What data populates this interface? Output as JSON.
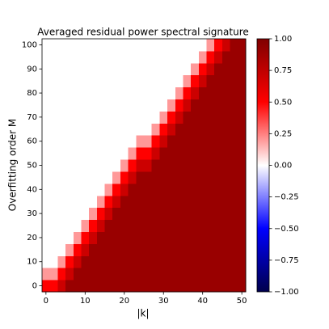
{
  "chart_data": {
    "type": "heatmap",
    "title": "Averaged residual power spectral signature",
    "xlabel": "|k|",
    "ylabel": "Overfitting order M",
    "x": [
      0,
      2,
      4,
      6,
      8,
      10,
      12,
      14,
      16,
      18,
      20,
      22,
      24,
      26,
      28,
      30,
      32,
      34,
      36,
      38,
      40,
      42,
      44,
      46,
      48,
      50
    ],
    "y": [
      0,
      5,
      10,
      15,
      20,
      25,
      30,
      35,
      40,
      45,
      50,
      55,
      60,
      65,
      70,
      75,
      80,
      85,
      90,
      95,
      100
    ],
    "z": [
      [
        0.5,
        0.5,
        0.7,
        0.9,
        0.9,
        0.9,
        0.9,
        0.9,
        0.9,
        0.9,
        0.9,
        0.9,
        0.9,
        0.9,
        0.9,
        0.9,
        0.9,
        0.9,
        0.9,
        0.9,
        0.9,
        0.9,
        0.9,
        0.9,
        0.9,
        0.9
      ],
      [
        0.2,
        0.2,
        0.5,
        0.7,
        0.9,
        0.9,
        0.9,
        0.9,
        0.9,
        0.9,
        0.9,
        0.9,
        0.9,
        0.9,
        0.9,
        0.9,
        0.9,
        0.9,
        0.9,
        0.9,
        0.9,
        0.9,
        0.9,
        0.9,
        0.9,
        0.9
      ],
      [
        0,
        0,
        0.2,
        0.5,
        0.7,
        0.9,
        0.9,
        0.9,
        0.9,
        0.9,
        0.9,
        0.9,
        0.9,
        0.9,
        0.9,
        0.9,
        0.9,
        0.9,
        0.9,
        0.9,
        0.9,
        0.9,
        0.9,
        0.9,
        0.9,
        0.9
      ],
      [
        0,
        0,
        0,
        0.2,
        0.5,
        0.7,
        0.9,
        0.9,
        0.9,
        0.9,
        0.9,
        0.9,
        0.9,
        0.9,
        0.9,
        0.9,
        0.9,
        0.9,
        0.9,
        0.9,
        0.9,
        0.9,
        0.9,
        0.9,
        0.9,
        0.9
      ],
      [
        0,
        0,
        0,
        0,
        0.2,
        0.5,
        0.7,
        0.9,
        0.9,
        0.9,
        0.9,
        0.9,
        0.9,
        0.9,
        0.9,
        0.9,
        0.9,
        0.9,
        0.9,
        0.9,
        0.9,
        0.9,
        0.9,
        0.9,
        0.9,
        0.9
      ],
      [
        0,
        0,
        0,
        0,
        0,
        0.2,
        0.5,
        0.7,
        0.9,
        0.9,
        0.9,
        0.9,
        0.9,
        0.9,
        0.9,
        0.9,
        0.9,
        0.9,
        0.9,
        0.9,
        0.9,
        0.9,
        0.9,
        0.9,
        0.9,
        0.9
      ],
      [
        0,
        0,
        0,
        0,
        0,
        0,
        0.2,
        0.5,
        0.7,
        0.9,
        0.9,
        0.9,
        0.9,
        0.9,
        0.9,
        0.9,
        0.9,
        0.9,
        0.9,
        0.9,
        0.9,
        0.9,
        0.9,
        0.9,
        0.9,
        0.9
      ],
      [
        0,
        0,
        0,
        0,
        0,
        0,
        0,
        0.2,
        0.5,
        0.7,
        0.9,
        0.9,
        0.9,
        0.9,
        0.9,
        0.9,
        0.9,
        0.9,
        0.9,
        0.9,
        0.9,
        0.9,
        0.9,
        0.9,
        0.9,
        0.9
      ],
      [
        0,
        0,
        0,
        0,
        0,
        0,
        0,
        0,
        0.2,
        0.5,
        0.7,
        0.9,
        0.9,
        0.9,
        0.9,
        0.9,
        0.9,
        0.9,
        0.9,
        0.9,
        0.9,
        0.9,
        0.9,
        0.9,
        0.9,
        0.9
      ],
      [
        0,
        0,
        0,
        0,
        0,
        0,
        0,
        0,
        0,
        0.2,
        0.5,
        0.7,
        0.9,
        0.9,
        0.9,
        0.9,
        0.9,
        0.9,
        0.9,
        0.9,
        0.9,
        0.9,
        0.9,
        0.9,
        0.9,
        0.9
      ],
      [
        0,
        0,
        0,
        0,
        0,
        0,
        0,
        0,
        0,
        0,
        0.2,
        0.5,
        0.7,
        0.7,
        0.9,
        0.9,
        0.9,
        0.9,
        0.9,
        0.9,
        0.9,
        0.9,
        0.9,
        0.9,
        0.9,
        0.9
      ],
      [
        0,
        0,
        0,
        0,
        0,
        0,
        0,
        0,
        0,
        0,
        0,
        0.2,
        0.5,
        0.5,
        0.7,
        0.9,
        0.9,
        0.9,
        0.9,
        0.9,
        0.9,
        0.9,
        0.9,
        0.9,
        0.9,
        0.9
      ],
      [
        0,
        0,
        0,
        0,
        0,
        0,
        0,
        0,
        0,
        0,
        0,
        0,
        0.2,
        0.2,
        0.5,
        0.7,
        0.9,
        0.9,
        0.9,
        0.9,
        0.9,
        0.9,
        0.9,
        0.9,
        0.9,
        0.9
      ],
      [
        0,
        0,
        0,
        0,
        0,
        0,
        0,
        0,
        0,
        0,
        0,
        0,
        0,
        0,
        0.2,
        0.5,
        0.7,
        0.9,
        0.9,
        0.9,
        0.9,
        0.9,
        0.9,
        0.9,
        0.9,
        0.9
      ],
      [
        0,
        0,
        0,
        0,
        0,
        0,
        0,
        0,
        0,
        0,
        0,
        0,
        0,
        0,
        0,
        0.2,
        0.5,
        0.7,
        0.9,
        0.9,
        0.9,
        0.9,
        0.9,
        0.9,
        0.9,
        0.9
      ],
      [
        0,
        0,
        0,
        0,
        0,
        0,
        0,
        0,
        0,
        0,
        0,
        0,
        0,
        0,
        0,
        0,
        0.2,
        0.5,
        0.7,
        0.9,
        0.9,
        0.9,
        0.9,
        0.9,
        0.9,
        0.9
      ],
      [
        0,
        0,
        0,
        0,
        0,
        0,
        0,
        0,
        0,
        0,
        0,
        0,
        0,
        0,
        0,
        0,
        0,
        0.2,
        0.5,
        0.7,
        0.9,
        0.9,
        0.9,
        0.9,
        0.9,
        0.9
      ],
      [
        0,
        0,
        0,
        0,
        0,
        0,
        0,
        0,
        0,
        0,
        0,
        0,
        0,
        0,
        0,
        0,
        0,
        0,
        0.2,
        0.5,
        0.7,
        0.9,
        0.9,
        0.9,
        0.9,
        0.9
      ],
      [
        0,
        0,
        0,
        0,
        0,
        0,
        0,
        0,
        0,
        0,
        0,
        0,
        0,
        0,
        0,
        0,
        0,
        0,
        0,
        0.2,
        0.5,
        0.7,
        0.9,
        0.9,
        0.9,
        0.9
      ],
      [
        0,
        0,
        0,
        0,
        0,
        0,
        0,
        0,
        0,
        0,
        0,
        0,
        0,
        0,
        0,
        0,
        0,
        0,
        0,
        0,
        0.2,
        0.5,
        0.7,
        0.9,
        0.9,
        0.9
      ],
      [
        0,
        0,
        0,
        0,
        0,
        0,
        0,
        0,
        0,
        0,
        0,
        0,
        0,
        0,
        0,
        0,
        0,
        0,
        0,
        0,
        0,
        0.2,
        0.5,
        0.7,
        0.9,
        0.9
      ]
    ],
    "cmap": "seismic",
    "xlim": [
      -1,
      51
    ],
    "ylim": [
      -2.5,
      102.5
    ],
    "xticks": [
      0,
      10,
      20,
      30,
      40,
      50
    ],
    "yticks": [
      0,
      10,
      20,
      30,
      40,
      50,
      60,
      70,
      80,
      90,
      100
    ],
    "clim": [
      -1,
      1
    ],
    "cticks": [
      {
        "value": -1,
        "label": "−1.00"
      },
      {
        "value": -0.75,
        "label": "−0.75"
      },
      {
        "value": -0.5,
        "label": "−0.50"
      },
      {
        "value": -0.25,
        "label": "−0.25"
      },
      {
        "value": 0,
        "label": "0.00"
      },
      {
        "value": 0.25,
        "label": "0.25"
      },
      {
        "value": 0.5,
        "label": "0.50"
      },
      {
        "value": 0.75,
        "label": "0.75"
      },
      {
        "value": 1,
        "label": "1.00"
      }
    ]
  }
}
